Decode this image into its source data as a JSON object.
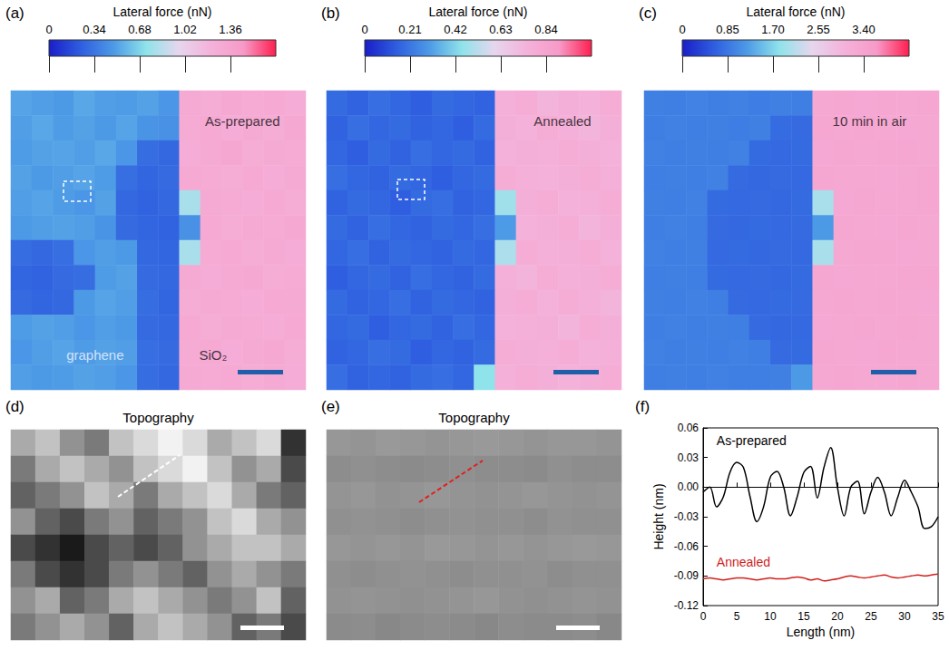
{
  "chart_data": [
    {
      "type": "heatmap",
      "panel": "(a)",
      "colorbar_title": "Lateral force (nN)",
      "colorbar_range": [
        0,
        1.7
      ],
      "colorbar_ticks": [
        0,
        0.34,
        0.68,
        1.02,
        1.36
      ],
      "annotations": [
        {
          "text": "As-prepared",
          "col": 11,
          "row": 1.2
        },
        {
          "text": "graphene",
          "col": 4,
          "row": 10.6
        },
        {
          "text": "SiO₂",
          "col": 9.6,
          "row": 10.6
        }
      ],
      "cells": [
        [
          0.52,
          0.5,
          0.48,
          0.53,
          0.5,
          0.49,
          0.51,
          0.47,
          1.3,
          1.28,
          1.32,
          1.29,
          1.31,
          1.27
        ],
        [
          0.5,
          0.53,
          0.49,
          0.51,
          0.48,
          0.52,
          0.46,
          0.45,
          1.29,
          1.31,
          1.27,
          1.3,
          1.28,
          1.32
        ],
        [
          0.49,
          0.51,
          0.52,
          0.5,
          0.53,
          0.47,
          0.3,
          0.28,
          1.27,
          1.3,
          1.33,
          1.28,
          1.3,
          1.29
        ],
        [
          0.51,
          0.48,
          0.5,
          0.52,
          0.49,
          0.31,
          0.27,
          0.29,
          1.31,
          1.29,
          1.28,
          1.31,
          1.27,
          1.3
        ],
        [
          0.5,
          0.52,
          0.49,
          0.47,
          0.51,
          0.28,
          0.26,
          0.28,
          0.8,
          1.3,
          1.29,
          1.27,
          1.31,
          1.28
        ],
        [
          0.48,
          0.5,
          0.51,
          0.5,
          0.46,
          0.29,
          0.27,
          0.26,
          0.45,
          1.31,
          1.28,
          1.3,
          1.29,
          1.32
        ],
        [
          0.3,
          0.28,
          0.31,
          0.47,
          0.5,
          0.48,
          0.28,
          0.27,
          0.8,
          1.29,
          1.31,
          1.28,
          1.3,
          1.27
        ],
        [
          0.27,
          0.26,
          0.29,
          0.3,
          0.49,
          0.51,
          0.29,
          0.28,
          1.3,
          1.27,
          1.3,
          1.32,
          1.28,
          1.29
        ],
        [
          0.29,
          0.27,
          0.28,
          0.48,
          0.52,
          0.5,
          0.3,
          0.27,
          1.28,
          1.3,
          1.29,
          1.27,
          1.31,
          1.3
        ],
        [
          0.49,
          0.51,
          0.5,
          0.47,
          0.5,
          0.48,
          0.29,
          0.28,
          1.31,
          1.28,
          1.3,
          1.29,
          1.27,
          1.31
        ],
        [
          0.47,
          0.5,
          0.52,
          0.49,
          0.51,
          0.5,
          0.31,
          0.29,
          1.29,
          1.31,
          1.27,
          1.3,
          1.32,
          1.28
        ],
        [
          0.5,
          0.48,
          0.49,
          0.51,
          0.5,
          0.47,
          0.3,
          0.28,
          1.3,
          1.29,
          1.31,
          1.28,
          1.3,
          1.27
        ]
      ]
    },
    {
      "type": "heatmap",
      "panel": "(b)",
      "colorbar_title": "Lateral force (nN)",
      "colorbar_range": [
        0,
        1.05
      ],
      "colorbar_ticks": [
        0,
        0.21,
        0.42,
        0.63,
        0.84
      ],
      "annotations": [
        {
          "text": "Annealed",
          "col": 11.2,
          "row": 1.2
        }
      ],
      "cells": [
        [
          0.18,
          0.16,
          0.19,
          0.17,
          0.15,
          0.18,
          0.17,
          0.16,
          0.76,
          0.78,
          0.74,
          0.77,
          0.75,
          0.79
        ],
        [
          0.16,
          0.19,
          0.17,
          0.18,
          0.16,
          0.17,
          0.15,
          0.18,
          0.77,
          0.75,
          0.78,
          0.76,
          0.74,
          0.77
        ],
        [
          0.17,
          0.15,
          0.18,
          0.16,
          0.19,
          0.17,
          0.18,
          0.16,
          0.75,
          0.77,
          0.76,
          0.78,
          0.77,
          0.75
        ],
        [
          0.19,
          0.17,
          0.16,
          0.18,
          0.17,
          0.15,
          0.17,
          0.18,
          0.78,
          0.76,
          0.75,
          0.77,
          0.79,
          0.76
        ],
        [
          0.16,
          0.18,
          0.17,
          0.15,
          0.18,
          0.19,
          0.16,
          0.17,
          0.48,
          0.77,
          0.78,
          0.75,
          0.76,
          0.78
        ],
        [
          0.18,
          0.16,
          0.19,
          0.17,
          0.16,
          0.18,
          0.17,
          0.19,
          0.3,
          0.75,
          0.77,
          0.78,
          0.74,
          0.77
        ],
        [
          0.17,
          0.19,
          0.16,
          0.18,
          0.17,
          0.16,
          0.18,
          0.17,
          0.5,
          0.78,
          0.76,
          0.77,
          0.79,
          0.75
        ],
        [
          0.15,
          0.17,
          0.18,
          0.16,
          0.19,
          0.17,
          0.16,
          0.18,
          0.76,
          0.74,
          0.78,
          0.76,
          0.77,
          0.78
        ],
        [
          0.18,
          0.16,
          0.17,
          0.19,
          0.16,
          0.18,
          0.17,
          0.16,
          0.77,
          0.79,
          0.75,
          0.78,
          0.76,
          0.74
        ],
        [
          0.17,
          0.18,
          0.15,
          0.17,
          0.18,
          0.16,
          0.19,
          0.17,
          0.75,
          0.76,
          0.77,
          0.74,
          0.78,
          0.77
        ],
        [
          0.16,
          0.17,
          0.19,
          0.18,
          0.15,
          0.17,
          0.16,
          0.18,
          0.78,
          0.77,
          0.76,
          0.79,
          0.75,
          0.76
        ],
        [
          0.19,
          0.16,
          0.17,
          0.16,
          0.18,
          0.19,
          0.17,
          0.45,
          0.76,
          0.78,
          0.77,
          0.75,
          0.77,
          0.78
        ]
      ]
    },
    {
      "type": "heatmap",
      "panel": "(c)",
      "colorbar_title": "Lateral force (nN)",
      "colorbar_range": [
        0,
        4.25
      ],
      "colorbar_ticks": [
        0,
        0.85,
        {
          "value": 1.7,
          "label": "1.70"
        },
        2.55,
        {
          "value": 3.4,
          "label": "3.40"
        }
      ],
      "annotations": [
        {
          "text": "10 min in air",
          "col": 10.7,
          "row": 1.2
        }
      ],
      "cells": [
        [
          0.95,
          0.93,
          0.97,
          0.94,
          0.96,
          0.92,
          0.95,
          0.94,
          3.3,
          3.32,
          3.28,
          3.31,
          3.29,
          3.33
        ],
        [
          0.94,
          0.96,
          0.93,
          0.95,
          0.92,
          0.95,
          0.74,
          0.72,
          3.31,
          3.29,
          3.33,
          3.3,
          3.28,
          3.3
        ],
        [
          0.96,
          0.94,
          0.95,
          0.93,
          0.96,
          0.73,
          0.71,
          0.73,
          3.28,
          3.31,
          3.3,
          3.32,
          3.31,
          3.29
        ],
        [
          0.93,
          0.95,
          0.94,
          0.96,
          0.72,
          0.7,
          0.72,
          0.71,
          3.32,
          3.3,
          3.29,
          3.28,
          3.3,
          3.31
        ],
        [
          0.95,
          0.93,
          0.96,
          0.73,
          0.71,
          0.72,
          0.7,
          0.73,
          2.0,
          3.28,
          3.31,
          3.3,
          3.29,
          3.32
        ],
        [
          0.94,
          0.96,
          0.93,
          0.72,
          0.7,
          0.73,
          0.71,
          0.72,
          1.2,
          3.32,
          3.3,
          3.28,
          3.31,
          3.29
        ],
        [
          0.96,
          0.94,
          0.95,
          0.71,
          0.73,
          0.7,
          0.72,
          0.71,
          2.0,
          3.29,
          3.32,
          3.31,
          3.28,
          3.3
        ],
        [
          0.93,
          0.95,
          0.94,
          0.73,
          0.71,
          0.72,
          0.7,
          0.73,
          3.31,
          3.28,
          3.3,
          3.29,
          3.32,
          3.31
        ],
        [
          0.95,
          0.93,
          0.96,
          0.94,
          0.72,
          0.71,
          0.73,
          0.72,
          3.3,
          3.31,
          3.29,
          3.32,
          3.3,
          3.28
        ],
        [
          0.94,
          0.96,
          0.93,
          0.95,
          0.93,
          0.72,
          0.7,
          0.71,
          3.28,
          3.3,
          3.31,
          3.29,
          3.33,
          3.3
        ],
        [
          0.96,
          0.94,
          0.95,
          0.93,
          0.96,
          0.94,
          0.72,
          0.73,
          3.32,
          3.29,
          3.28,
          3.31,
          3.3,
          3.29
        ],
        [
          0.93,
          0.95,
          0.94,
          0.96,
          0.94,
          0.93,
          0.95,
          1.2,
          3.29,
          3.31,
          3.3,
          3.28,
          3.31,
          3.3
        ]
      ]
    },
    {
      "type": "heatmap",
      "panel": "(d)",
      "title": "Topography",
      "cells": [
        [
          0.01,
          0.02,
          0.0,
          -0.01,
          0.02,
          0.03,
          0.04,
          0.03,
          0.01,
          0.02,
          0.03,
          -0.04
        ],
        [
          -0.01,
          0.01,
          0.02,
          0.01,
          0.0,
          0.02,
          0.03,
          0.04,
          0.02,
          0.0,
          0.01,
          -0.03
        ],
        [
          -0.02,
          -0.01,
          0.0,
          0.02,
          0.01,
          -0.01,
          0.01,
          0.02,
          0.03,
          0.01,
          -0.01,
          -0.02
        ],
        [
          0.0,
          -0.02,
          -0.03,
          -0.01,
          0.0,
          -0.02,
          -0.01,
          0.0,
          0.02,
          0.03,
          0.01,
          0.0
        ],
        [
          -0.03,
          -0.04,
          -0.05,
          -0.03,
          -0.02,
          -0.03,
          -0.02,
          0.0,
          0.01,
          0.02,
          0.02,
          0.01
        ],
        [
          -0.01,
          -0.03,
          -0.04,
          -0.03,
          -0.01,
          0.0,
          -0.01,
          -0.02,
          0.0,
          0.01,
          0.0,
          -0.01
        ],
        [
          0.0,
          0.01,
          -0.02,
          -0.01,
          0.01,
          0.02,
          0.01,
          0.0,
          -0.01,
          0.0,
          0.02,
          -0.02
        ],
        [
          -0.01,
          0.0,
          0.01,
          0.0,
          -0.02,
          0.01,
          0.02,
          0.01,
          0.0,
          -0.02,
          -0.01,
          -0.03
        ]
      ]
    },
    {
      "type": "heatmap",
      "panel": "(e)",
      "title": "Topography",
      "cells": [
        [
          0.002,
          0.001,
          0.003,
          0.002,
          0.001,
          0.002,
          0.003,
          0.002,
          0.001,
          0.002,
          0.002,
          0.001
        ],
        [
          -0.002,
          -0.001,
          -0.002,
          -0.003,
          -0.002,
          -0.001,
          -0.002,
          -0.002,
          -0.003,
          -0.001,
          -0.002,
          -0.002
        ],
        [
          0.001,
          0.002,
          0.0,
          0.001,
          0.002,
          0.001,
          0.0,
          0.001,
          0.002,
          0.001,
          0.0,
          0.001
        ],
        [
          -0.001,
          0.0,
          -0.001,
          -0.002,
          -0.001,
          0.0,
          -0.001,
          -0.001,
          -0.002,
          0.0,
          -0.001,
          -0.001
        ],
        [
          0.002,
          0.001,
          0.002,
          0.001,
          0.003,
          0.002,
          0.001,
          0.002,
          0.001,
          0.002,
          0.003,
          0.002
        ],
        [
          -0.001,
          -0.002,
          -0.001,
          0.0,
          -0.001,
          -0.002,
          -0.001,
          -0.001,
          0.0,
          -0.002,
          -0.001,
          -0.001
        ],
        [
          0.0,
          0.001,
          0.0,
          -0.001,
          0.0,
          0.001,
          0.002,
          0.0,
          -0.001,
          0.0,
          0.001,
          0.0
        ],
        [
          -0.003,
          -0.002,
          -0.004,
          -0.003,
          -0.002,
          -0.003,
          -0.004,
          -0.002,
          -0.003,
          -0.003,
          -0.002,
          -0.004
        ]
      ]
    },
    {
      "type": "line",
      "panel": "(f)",
      "xlabel": "Length (nm)",
      "ylabel": "Height (nm)",
      "x": [
        0,
        1,
        2,
        3,
        4,
        5,
        6,
        7,
        8,
        9,
        10,
        11,
        12,
        13,
        14,
        15,
        16,
        17,
        18,
        19,
        20,
        21,
        22,
        23,
        24,
        25,
        26,
        27,
        28,
        29,
        30,
        31,
        32,
        33,
        34,
        35
      ],
      "xlim": [
        0,
        35
      ],
      "xticks": [
        0,
        5,
        10,
        15,
        20,
        25,
        30,
        35
      ],
      "ylim": [
        -0.12,
        0.06
      ],
      "yticks": [
        -0.12,
        -0.09,
        -0.06,
        -0.03,
        {
          "value": 0,
          "label": "0.00"
        },
        0.03,
        0.06
      ],
      "series": [
        {
          "name": "As-prepared",
          "color": "#000000",
          "label_at": [
            2,
            0.047
          ],
          "values": [
            -0.005,
            0.0,
            -0.02,
            -0.01,
            0.015,
            0.025,
            0.02,
            -0.01,
            -0.035,
            -0.02,
            0.01,
            0.016,
            0.0,
            -0.029,
            -0.01,
            0.015,
            0.021,
            -0.011,
            0.02,
            0.04,
            0.0,
            -0.029,
            0.0,
            0.006,
            -0.027,
            -0.005,
            0.01,
            -0.005,
            -0.029,
            -0.01,
            0.007,
            -0.005,
            -0.02,
            -0.042,
            -0.04,
            -0.03
          ]
        },
        {
          "name": "Annealed",
          "color": "#d0201c",
          "label_at": [
            2,
            -0.076
          ],
          "values": [
            -0.093,
            -0.092,
            -0.093,
            -0.094,
            -0.093,
            -0.092,
            -0.092,
            -0.093,
            -0.094,
            -0.093,
            -0.092,
            -0.093,
            -0.093,
            -0.092,
            -0.091,
            -0.092,
            -0.094,
            -0.093,
            -0.095,
            -0.094,
            -0.093,
            -0.091,
            -0.09,
            -0.091,
            -0.092,
            -0.091,
            -0.09,
            -0.089,
            -0.091,
            -0.092,
            -0.091,
            -0.09,
            -0.089,
            -0.09,
            -0.089,
            -0.088
          ]
        }
      ]
    }
  ]
}
